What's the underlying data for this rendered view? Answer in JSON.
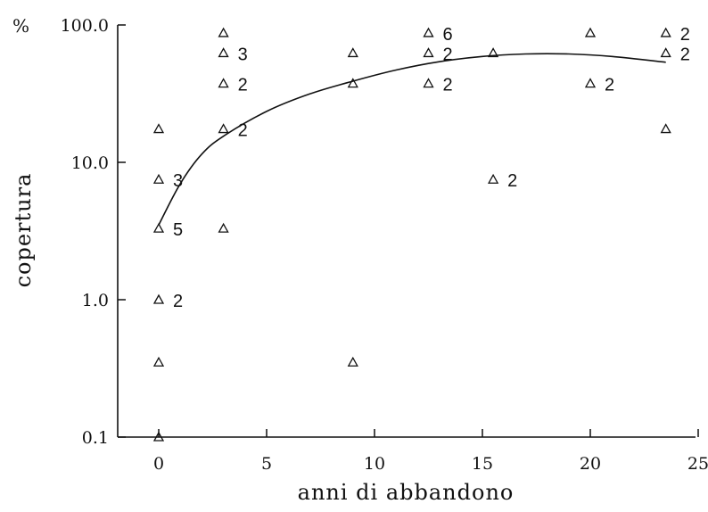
{
  "chart_data": {
    "type": "scatter",
    "xlabel": "anni di abbandono",
    "ylabel": "copertura",
    "yunit": "%",
    "y_scale": "log",
    "xlim": [
      -2,
      25
    ],
    "ylim": [
      0.1,
      100
    ],
    "x_ticks": [
      0,
      5,
      10,
      15,
      20,
      25
    ],
    "y_ticks": [
      {
        "value": 0.1,
        "label": "0.1"
      },
      {
        "value": 1,
        "label": "1.0"
      },
      {
        "value": 10,
        "label": "10.0"
      },
      {
        "value": 100,
        "label": "100.0"
      }
    ],
    "marker": "triangle-open",
    "points": [
      {
        "x": 0,
        "y": 17.5
      },
      {
        "x": 0,
        "y": 7.5,
        "count": "3"
      },
      {
        "x": 0,
        "y": 3.3,
        "count": "5"
      },
      {
        "x": 0,
        "y": 1.0,
        "count": "2"
      },
      {
        "x": 0,
        "y": 0.35
      },
      {
        "x": 0,
        "y": 0.1
      },
      {
        "x": 3,
        "y": 87.5
      },
      {
        "x": 3,
        "y": 62.5,
        "count": "3"
      },
      {
        "x": 3,
        "y": 37.5,
        "count": "2"
      },
      {
        "x": 3,
        "y": 17.5,
        "count": "2"
      },
      {
        "x": 3,
        "y": 3.3
      },
      {
        "x": 9,
        "y": 62.5
      },
      {
        "x": 9,
        "y": 37.5
      },
      {
        "x": 9,
        "y": 0.35
      },
      {
        "x": 12.5,
        "y": 87.5,
        "count": "6"
      },
      {
        "x": 12.5,
        "y": 62.5,
        "count": "2"
      },
      {
        "x": 12.5,
        "y": 37.5,
        "count": "2"
      },
      {
        "x": 15.5,
        "y": 62.5
      },
      {
        "x": 15.5,
        "y": 7.5,
        "count": "2"
      },
      {
        "x": 20,
        "y": 87.5
      },
      {
        "x": 20,
        "y": 37.5,
        "count": "2"
      },
      {
        "x": 23.5,
        "y": 87.5,
        "count": "2"
      },
      {
        "x": 23.5,
        "y": 62.5,
        "count": "2"
      },
      {
        "x": 23.5,
        "y": 17.5
      }
    ],
    "fit_curve": [
      {
        "x": 0,
        "y": 3.5
      },
      {
        "x": 1,
        "y": 7.0
      },
      {
        "x": 2,
        "y": 11.5
      },
      {
        "x": 3,
        "y": 15.5
      },
      {
        "x": 5,
        "y": 23.5
      },
      {
        "x": 7,
        "y": 31.5
      },
      {
        "x": 9,
        "y": 39.0
      },
      {
        "x": 11,
        "y": 47.0
      },
      {
        "x": 13,
        "y": 54.0
      },
      {
        "x": 15,
        "y": 59.0
      },
      {
        "x": 17,
        "y": 61.5
      },
      {
        "x": 19,
        "y": 61.5
      },
      {
        "x": 21,
        "y": 59.0
      },
      {
        "x": 23.5,
        "y": 53.5
      }
    ]
  }
}
